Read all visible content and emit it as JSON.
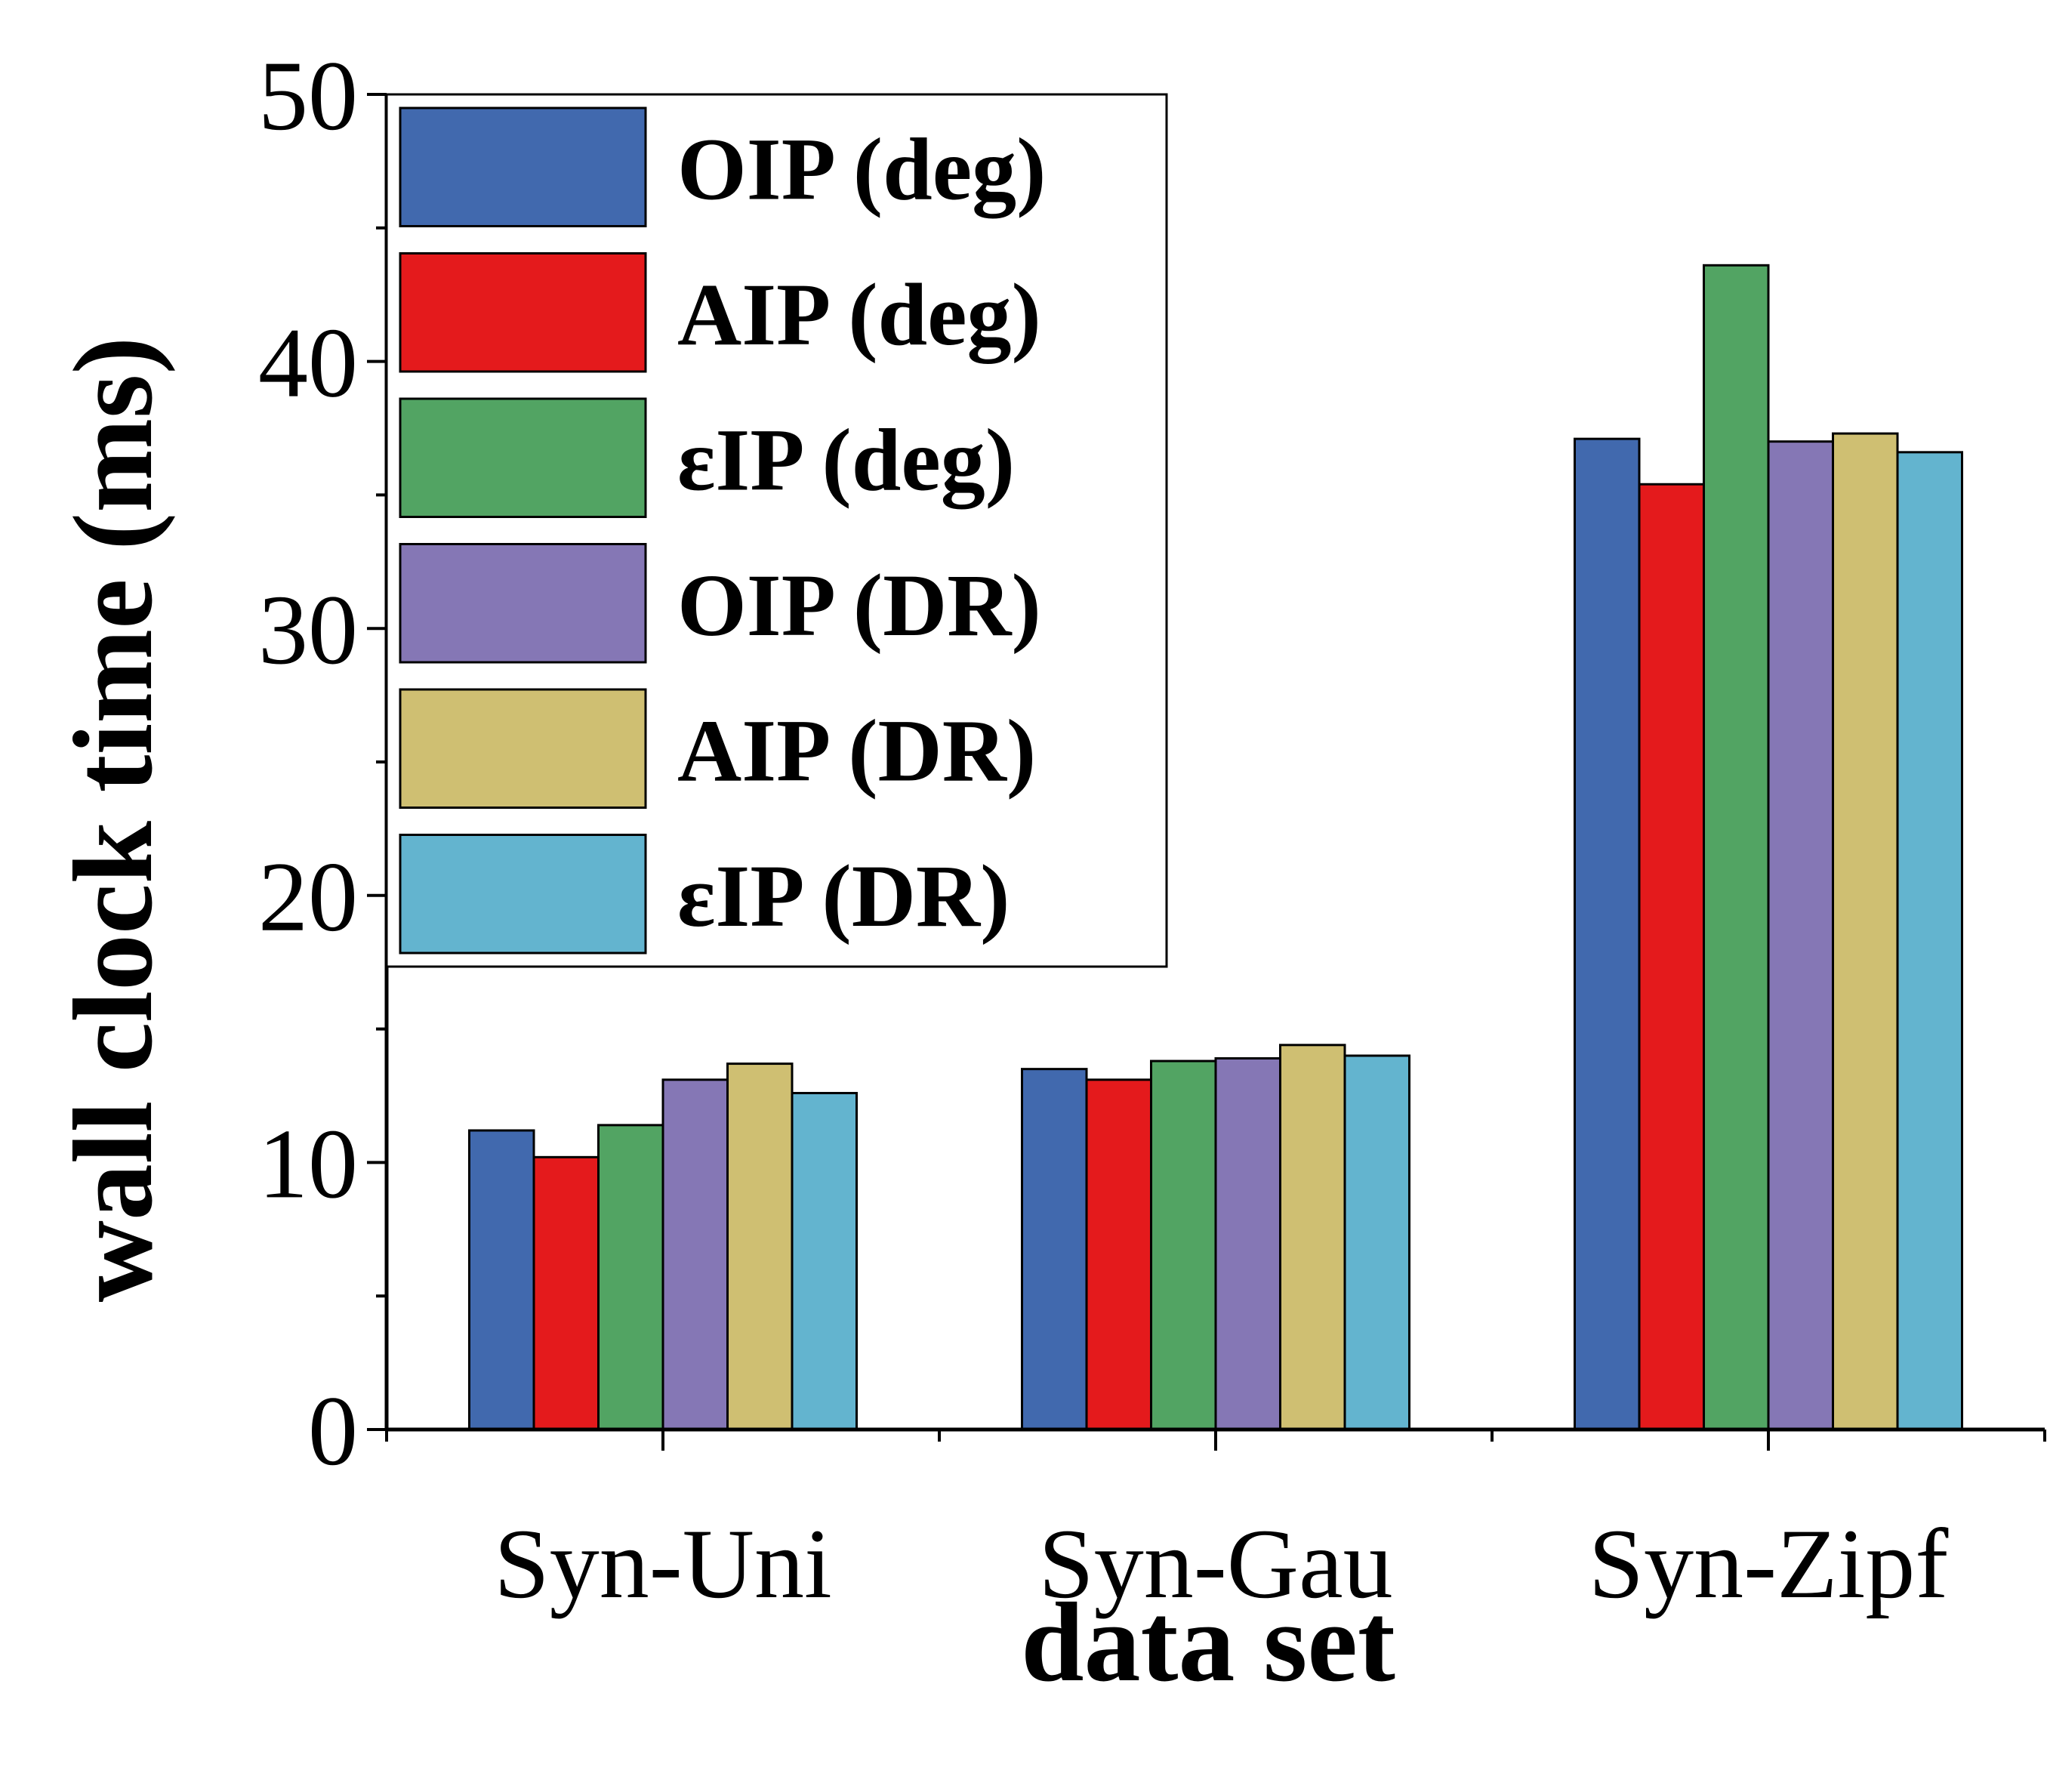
{
  "chart_data": {
    "type": "bar",
    "title": "",
    "xlabel": "data set",
    "ylabel": "wall clock time (ms)",
    "categories": [
      "Syn-Uni",
      "Syn-Gau",
      "Syn-Zipf"
    ],
    "ylim": [
      0,
      50
    ],
    "yticks": [
      0,
      10,
      20,
      30,
      40,
      50
    ],
    "grid": false,
    "legend_position": "top-left",
    "series": [
      {
        "name": "OIP (deg)",
        "color": "#4169AE",
        "values": [
          11.2,
          13.5,
          37.1
        ]
      },
      {
        "name": "AIP (deg)",
        "color": "#E41A1C",
        "values": [
          10.2,
          13.1,
          35.4
        ]
      },
      {
        "name": "εIP (deg)",
        "color": "#52A463",
        "values": [
          11.4,
          13.8,
          43.6
        ]
      },
      {
        "name": "OIP (DR)",
        "color": "#8577B5",
        "values": [
          13.1,
          13.9,
          37.0
        ]
      },
      {
        "name": "AIP (DR)",
        "color": "#CFBF72",
        "values": [
          13.7,
          14.4,
          37.3
        ]
      },
      {
        "name": "εIP (DR)",
        "color": "#63B4CF",
        "values": [
          12.6,
          14.0,
          36.6
        ]
      }
    ]
  }
}
